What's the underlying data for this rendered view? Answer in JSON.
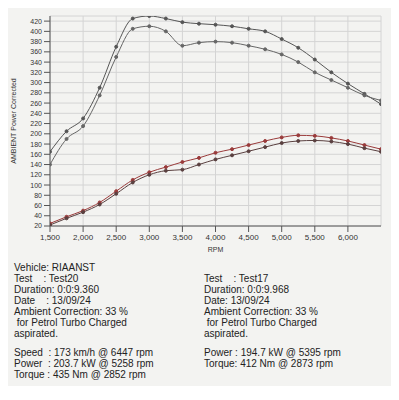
{
  "chart_data": {
    "type": "line",
    "xlabel": "RPM",
    "ylabel": "AMBIENT Power Corrected",
    "x": [
      1500,
      1750,
      2000,
      2250,
      2500,
      2750,
      3000,
      3250,
      3500,
      3750,
      4000,
      4250,
      4500,
      4750,
      5000,
      5250,
      5500,
      5750,
      6000,
      6250,
      6500
    ],
    "xlim": [
      1500,
      6500
    ],
    "xticks": [
      {
        "value": 1500,
        "label": "1,500"
      },
      {
        "value": 2000,
        "label": "2,000"
      },
      {
        "value": 2500,
        "label": "2,500"
      },
      {
        "value": 3000,
        "label": "3,000"
      },
      {
        "value": 3500,
        "label": "3,500"
      },
      {
        "value": 4000,
        "label": "4,000"
      },
      {
        "value": 4500,
        "label": "4,500"
      },
      {
        "value": 5000,
        "label": "5,000"
      },
      {
        "value": 5500,
        "label": "5,500"
      },
      {
        "value": 6000,
        "label": "6,000"
      }
    ],
    "ylim": [
      20,
      430
    ],
    "yticks": [
      20,
      40,
      60,
      80,
      100,
      120,
      140,
      160,
      180,
      200,
      220,
      240,
      260,
      280,
      300,
      320,
      340,
      360,
      380,
      400,
      420
    ],
    "grid": true,
    "series": [
      {
        "name": "Test20",
        "color": "#555555",
        "marker": "circle",
        "line_style": "solid",
        "values": [
          165,
          205,
          230,
          290,
          370,
          425,
          430,
          425,
          418,
          415,
          413,
          410,
          405,
          400,
          385,
          368,
          345,
          320,
          298,
          278,
          258
        ]
      },
      {
        "name": "Test17",
        "color": "#666666",
        "marker": "circle",
        "line_style": "solid",
        "values": [
          140,
          190,
          215,
          275,
          350,
          405,
          410,
          400,
          372,
          378,
          380,
          378,
          372,
          365,
          355,
          340,
          320,
          305,
          290,
          275,
          265
        ]
      },
      {
        "name": "Test20",
        "color": "#9a3b3b",
        "marker": "circle",
        "line_style": "solid",
        "values": [
          25,
          38,
          50,
          66,
          88,
          110,
          125,
          135,
          145,
          153,
          163,
          170,
          178,
          186,
          193,
          197,
          196,
          192,
          186,
          178,
          170
        ]
      },
      {
        "name": "Test17",
        "color": "#5a4040",
        "marker": "circle",
        "line_style": "solid",
        "values": [
          22,
          35,
          47,
          62,
          83,
          105,
          120,
          128,
          130,
          140,
          150,
          158,
          166,
          174,
          182,
          186,
          187,
          185,
          180,
          172,
          165
        ]
      }
    ]
  },
  "report": {
    "vehicle": "Vehicle: RIAANST",
    "left": {
      "lines": [
        "Test    : Test20",
        "Duration: 0:0:9.360",
        "Date    : 13/09/24",
        "Ambient Correction: 33 %",
        " for Petrol Turbo Charged",
        "aspirated."
      ],
      "results": [
        "Speed  : 173 km/h @ 6447 rpm",
        "Power  : 203.7 kW @ 5258 rpm",
        "Torque : 435 Nm @ 2852 rpm"
      ]
    },
    "right": {
      "lines": [
        "Test    : Test17",
        "Duration: 0:0:9.968",
        "Date: 13/09/24",
        "Ambient Correction: 33 %",
        " for Petrol Turbo Charged",
        "aspirated."
      ],
      "results": [
        "Power : 194.7 kW @ 5395 rpm",
        "Torque: 412 Nm @ 2873 rpm"
      ]
    }
  }
}
